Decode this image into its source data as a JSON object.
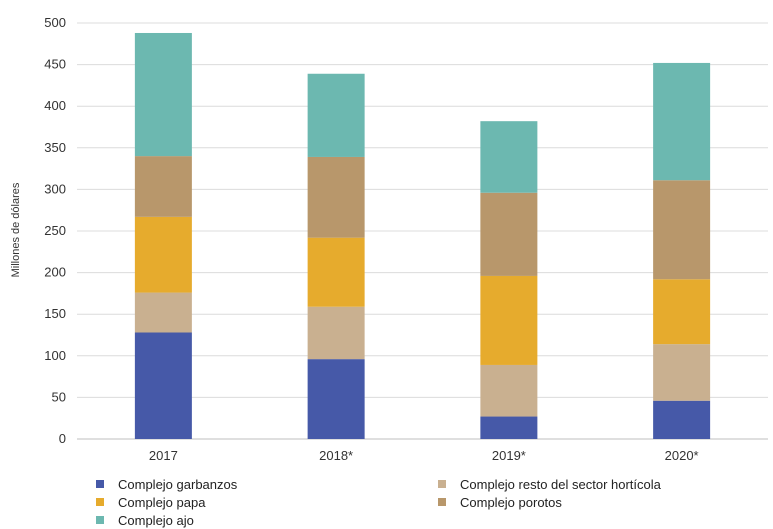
{
  "chart_data": {
    "type": "bar",
    "stacked": true,
    "categories": [
      "2017",
      "2018*",
      "2019*",
      "2020*"
    ],
    "series": [
      {
        "name": "Complejo garbanzos",
        "color": "#4659a8",
        "values": [
          128,
          96,
          27,
          46
        ]
      },
      {
        "name": "Complejo resto del sector hortícola",
        "color": "#c9b090",
        "values": [
          48,
          63,
          62,
          68
        ]
      },
      {
        "name": "Complejo papa",
        "color": "#e6ab2d",
        "values": [
          91,
          83,
          107,
          78
        ]
      },
      {
        "name": "Complejo porotos",
        "color": "#b8976b",
        "values": [
          73,
          97,
          100,
          119
        ]
      },
      {
        "name": "Complejo ajo",
        "color": "#6cb8b0",
        "values": [
          148,
          100,
          86,
          141
        ]
      }
    ],
    "ylabel": "Millones de dólares",
    "ylim": [
      0,
      500
    ],
    "yticks": [
      0,
      50,
      100,
      150,
      200,
      250,
      300,
      350,
      400,
      450,
      500
    ],
    "grid": true,
    "legend_position": "bottom"
  }
}
